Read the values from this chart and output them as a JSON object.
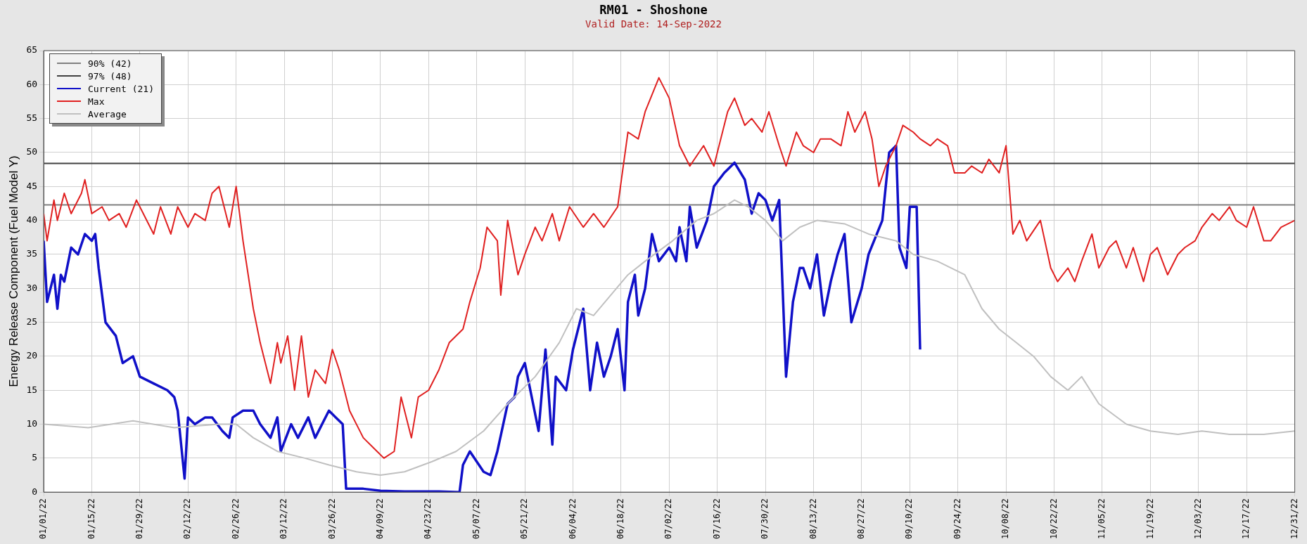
{
  "chart_data": {
    "type": "line",
    "title": "RM01 - Shoshone",
    "subtitle": "Valid Date: 14-Sep-2022",
    "ylabel": "Energy Release Component (Fuel Model Y)",
    "xlim": [
      "2022-01-01",
      "2022-12-31"
    ],
    "xticks": [
      {
        "value": "2022-01-01",
        "label": "01/01/22"
      },
      {
        "value": "2022-01-15",
        "label": "01/15/22"
      },
      {
        "value": "2022-01-29",
        "label": "01/29/22"
      },
      {
        "value": "2022-02-12",
        "label": "02/12/22"
      },
      {
        "value": "2022-02-26",
        "label": "02/26/22"
      },
      {
        "value": "2022-03-12",
        "label": "03/12/22"
      },
      {
        "value": "2022-03-26",
        "label": "03/26/22"
      },
      {
        "value": "2022-04-09",
        "label": "04/09/22"
      },
      {
        "value": "2022-04-23",
        "label": "04/23/22"
      },
      {
        "value": "2022-05-07",
        "label": "05/07/22"
      },
      {
        "value": "2022-05-21",
        "label": "05/21/22"
      },
      {
        "value": "2022-06-04",
        "label": "06/04/22"
      },
      {
        "value": "2022-06-18",
        "label": "06/18/22"
      },
      {
        "value": "2022-07-02",
        "label": "07/02/22"
      },
      {
        "value": "2022-07-16",
        "label": "07/16/22"
      },
      {
        "value": "2022-07-30",
        "label": "07/30/22"
      },
      {
        "value": "2022-08-13",
        "label": "08/13/22"
      },
      {
        "value": "2022-08-27",
        "label": "08/27/22"
      },
      {
        "value": "2022-09-10",
        "label": "09/10/22"
      },
      {
        "value": "2022-09-24",
        "label": "09/24/22"
      },
      {
        "value": "2022-10-08",
        "label": "10/08/22"
      },
      {
        "value": "2022-10-22",
        "label": "10/22/22"
      },
      {
        "value": "2022-11-05",
        "label": "11/05/22"
      },
      {
        "value": "2022-11-19",
        "label": "11/19/22"
      },
      {
        "value": "2022-12-03",
        "label": "12/03/22"
      },
      {
        "value": "2022-12-17",
        "label": "12/17/22"
      },
      {
        "value": "2022-12-31",
        "label": "12/31/22"
      }
    ],
    "ylim": [
      0,
      65
    ],
    "yticks": [
      0,
      5,
      10,
      15,
      20,
      25,
      30,
      35,
      40,
      45,
      50,
      55,
      60,
      65
    ],
    "grid": true,
    "legend": "top left",
    "marker": "none",
    "line_style": "solid",
    "series": [
      {
        "name": "90% (42)",
        "color": "#808080",
        "x": [
          "2022-01-01",
          "2022-12-31"
        ],
        "values": [
          42.3,
          42.3
        ]
      },
      {
        "name": "97% (48)",
        "color": "#404040",
        "x": [
          "2022-01-01",
          "2022-12-31"
        ],
        "values": [
          48.4,
          48.4
        ]
      },
      {
        "name": "Current (21)",
        "color": "#1010c8",
        "x": [
          "2022-01-01",
          "2022-01-02",
          "2022-01-04",
          "2022-01-05",
          "2022-01-06",
          "2022-01-07",
          "2022-01-09",
          "2022-01-11",
          "2022-01-13",
          "2022-01-15",
          "2022-01-16",
          "2022-01-17",
          "2022-01-19",
          "2022-01-22",
          "2022-01-24",
          "2022-01-27",
          "2022-01-29",
          "2022-02-02",
          "2022-02-06",
          "2022-02-08",
          "2022-02-09",
          "2022-02-11",
          "2022-02-12",
          "2022-02-14",
          "2022-02-17",
          "2022-02-19",
          "2022-02-22",
          "2022-02-24",
          "2022-02-25",
          "2022-02-28",
          "2022-03-03",
          "2022-03-05",
          "2022-03-08",
          "2022-03-10",
          "2022-03-11",
          "2022-03-14",
          "2022-03-16",
          "2022-03-19",
          "2022-03-21",
          "2022-03-25",
          "2022-03-27",
          "2022-03-29",
          "2022-03-30",
          "2022-04-04",
          "2022-04-09",
          "2022-04-16",
          "2022-04-26",
          "2022-05-02",
          "2022-05-03",
          "2022-05-05",
          "2022-05-09",
          "2022-05-11",
          "2022-05-13",
          "2022-05-16",
          "2022-05-18",
          "2022-05-19",
          "2022-05-21",
          "2022-05-23",
          "2022-05-25",
          "2022-05-27",
          "2022-05-29",
          "2022-05-30",
          "2022-06-02",
          "2022-06-04",
          "2022-06-07",
          "2022-06-09",
          "2022-06-11",
          "2022-06-13",
          "2022-06-15",
          "2022-06-17",
          "2022-06-19",
          "2022-06-20",
          "2022-06-22",
          "2022-06-23",
          "2022-06-25",
          "2022-06-27",
          "2022-06-29",
          "2022-07-02",
          "2022-07-04",
          "2022-07-05",
          "2022-07-07",
          "2022-07-08",
          "2022-07-10",
          "2022-07-13",
          "2022-07-15",
          "2022-07-18",
          "2022-07-21",
          "2022-07-24",
          "2022-07-26",
          "2022-07-28",
          "2022-07-30",
          "2022-08-01",
          "2022-08-03",
          "2022-08-05",
          "2022-08-07",
          "2022-08-09",
          "2022-08-10",
          "2022-08-12",
          "2022-08-14",
          "2022-08-16",
          "2022-08-18",
          "2022-08-20",
          "2022-08-22",
          "2022-08-24",
          "2022-08-27",
          "2022-08-29",
          "2022-09-02",
          "2022-09-04",
          "2022-09-06",
          "2022-09-07",
          "2022-09-09",
          "2022-09-10",
          "2022-09-12",
          "2022-09-13"
        ],
        "values": [
          37,
          28,
          32,
          27,
          32,
          31,
          36,
          35,
          38,
          37,
          38,
          33,
          25,
          23,
          19,
          20,
          17,
          16,
          15,
          14,
          12,
          2,
          11,
          10,
          11,
          11,
          9,
          8,
          11,
          12,
          12,
          10,
          8,
          11,
          6,
          10,
          8,
          11,
          8,
          12,
          11,
          10,
          0.5,
          0.5,
          0.2,
          0.1,
          0.1,
          0,
          4,
          6,
          3,
          2.5,
          6,
          13,
          14,
          17,
          19,
          14,
          9,
          21,
          7,
          17,
          15,
          21,
          27,
          15,
          22,
          17,
          20,
          24,
          15,
          28,
          32,
          26,
          30,
          38,
          34,
          36,
          34,
          39,
          34,
          42,
          36,
          40,
          45,
          47,
          48.5,
          46,
          41,
          44,
          43,
          40,
          43,
          17,
          28,
          33,
          33,
          30,
          35,
          26,
          31,
          35,
          38,
          25,
          30,
          35,
          40,
          50,
          51,
          36,
          33,
          42,
          42,
          21
        ]
      },
      {
        "name": "Max",
        "color": "#e02020",
        "x": [
          "2022-01-01",
          "2022-01-02",
          "2022-01-04",
          "2022-01-05",
          "2022-01-07",
          "2022-01-09",
          "2022-01-12",
          "2022-01-13",
          "2022-01-15",
          "2022-01-18",
          "2022-01-20",
          "2022-01-23",
          "2022-01-25",
          "2022-01-28",
          "2022-01-30",
          "2022-02-02",
          "2022-02-04",
          "2022-02-07",
          "2022-02-09",
          "2022-02-12",
          "2022-02-14",
          "2022-02-17",
          "2022-02-19",
          "2022-02-21",
          "2022-02-24",
          "2022-02-26",
          "2022-02-28",
          "2022-03-03",
          "2022-03-05",
          "2022-03-08",
          "2022-03-10",
          "2022-03-11",
          "2022-03-13",
          "2022-03-15",
          "2022-03-17",
          "2022-03-19",
          "2022-03-21",
          "2022-03-24",
          "2022-03-26",
          "2022-03-28",
          "2022-03-31",
          "2022-04-04",
          "2022-04-08",
          "2022-04-10",
          "2022-04-13",
          "2022-04-15",
          "2022-04-18",
          "2022-04-20",
          "2022-04-23",
          "2022-04-26",
          "2022-04-29",
          "2022-05-03",
          "2022-05-05",
          "2022-05-08",
          "2022-05-10",
          "2022-05-13",
          "2022-05-14",
          "2022-05-16",
          "2022-05-19",
          "2022-05-21",
          "2022-05-24",
          "2022-05-26",
          "2022-05-29",
          "2022-05-31",
          "2022-06-03",
          "2022-06-07",
          "2022-06-10",
          "2022-06-13",
          "2022-06-17",
          "2022-06-20",
          "2022-06-23",
          "2022-06-25",
          "2022-06-29",
          "2022-07-02",
          "2022-07-05",
          "2022-07-08",
          "2022-07-12",
          "2022-07-15",
          "2022-07-19",
          "2022-07-21",
          "2022-07-24",
          "2022-07-26",
          "2022-07-29",
          "2022-07-31",
          "2022-08-03",
          "2022-08-05",
          "2022-08-08",
          "2022-08-10",
          "2022-08-13",
          "2022-08-15",
          "2022-08-18",
          "2022-08-21",
          "2022-08-23",
          "2022-08-25",
          "2022-08-28",
          "2022-08-30",
          "2022-09-01",
          "2022-09-03",
          "2022-09-06",
          "2022-09-08",
          "2022-09-11",
          "2022-09-13",
          "2022-09-16",
          "2022-09-18",
          "2022-09-21",
          "2022-09-23",
          "2022-09-26",
          "2022-09-28",
          "2022-10-01",
          "2022-10-03",
          "2022-10-06",
          "2022-10-08",
          "2022-10-10",
          "2022-10-12",
          "2022-10-14",
          "2022-10-18",
          "2022-10-21",
          "2022-10-23",
          "2022-10-26",
          "2022-10-28",
          "2022-10-30",
          "2022-11-02",
          "2022-11-04",
          "2022-11-07",
          "2022-11-09",
          "2022-11-12",
          "2022-11-14",
          "2022-11-17",
          "2022-11-19",
          "2022-11-21",
          "2022-11-24",
          "2022-11-27",
          "2022-11-29",
          "2022-12-02",
          "2022-12-04",
          "2022-12-07",
          "2022-12-09",
          "2022-12-12",
          "2022-12-14",
          "2022-12-17",
          "2022-12-19",
          "2022-12-22",
          "2022-12-24",
          "2022-12-27",
          "2022-12-31"
        ],
        "values": [
          41,
          37,
          43,
          40,
          44,
          41,
          44,
          46,
          41,
          42,
          40,
          41,
          39,
          43,
          41,
          38,
          42,
          38,
          42,
          39,
          41,
          40,
          44,
          45,
          39,
          45,
          37,
          27,
          22,
          16,
          22,
          19,
          23,
          15,
          23,
          14,
          18,
          16,
          21,
          18,
          12,
          8,
          6,
          5,
          6,
          14,
          8,
          14,
          15,
          18,
          22,
          24,
          28,
          33,
          39,
          37,
          29,
          40,
          32,
          35,
          39,
          37,
          41,
          37,
          42,
          39,
          41,
          39,
          42,
          53,
          52,
          56,
          61,
          58,
          51,
          48,
          51,
          48,
          56,
          58,
          54,
          55,
          53,
          56,
          51,
          48,
          53,
          51,
          50,
          52,
          52,
          51,
          56,
          53,
          56,
          52,
          45,
          48,
          51,
          54,
          53,
          52,
          51,
          52,
          51,
          47,
          47,
          48,
          47,
          49,
          47,
          51,
          38,
          40,
          37,
          40,
          33,
          31,
          33,
          31,
          34,
          38,
          33,
          36,
          37,
          33,
          36,
          31,
          35,
          36,
          32,
          35,
          36,
          37,
          39,
          41,
          40,
          42,
          40,
          39,
          42,
          37,
          37,
          39,
          40
        ]
      },
      {
        "name": "Average",
        "color": "#c0c0c0",
        "x": [
          "2022-01-01",
          "2022-01-14",
          "2022-01-27",
          "2022-02-08",
          "2022-02-21",
          "2022-02-26",
          "2022-03-03",
          "2022-03-10",
          "2022-03-18",
          "2022-03-25",
          "2022-04-02",
          "2022-04-09",
          "2022-04-16",
          "2022-04-24",
          "2022-05-01",
          "2022-05-09",
          "2022-05-16",
          "2022-05-24",
          "2022-05-31",
          "2022-06-05",
          "2022-06-10",
          "2022-06-15",
          "2022-06-20",
          "2022-06-25",
          "2022-07-03",
          "2022-07-10",
          "2022-07-15",
          "2022-07-21",
          "2022-07-25",
          "2022-07-30",
          "2022-08-04",
          "2022-08-09",
          "2022-08-14",
          "2022-08-22",
          "2022-08-29",
          "2022-09-06",
          "2022-09-11",
          "2022-09-18",
          "2022-09-26",
          "2022-10-01",
          "2022-10-06",
          "2022-10-11",
          "2022-10-16",
          "2022-10-21",
          "2022-10-26",
          "2022-10-30",
          "2022-11-04",
          "2022-11-12",
          "2022-11-19",
          "2022-11-27",
          "2022-12-04",
          "2022-12-12",
          "2022-12-22",
          "2022-12-31"
        ],
        "values": [
          10,
          9.5,
          10.5,
          9.5,
          10,
          10,
          8,
          6,
          5,
          4,
          3,
          2.5,
          3,
          4.5,
          6,
          9,
          13,
          17,
          22,
          27,
          26,
          29,
          32,
          34,
          37,
          40,
          41,
          43,
          42,
          40,
          37,
          39,
          40,
          39.5,
          38,
          37,
          35,
          34,
          32,
          27,
          24,
          22,
          20,
          17,
          15,
          17,
          13,
          10,
          9,
          8.5,
          9,
          8.5,
          8.5,
          9
        ]
      }
    ]
  }
}
